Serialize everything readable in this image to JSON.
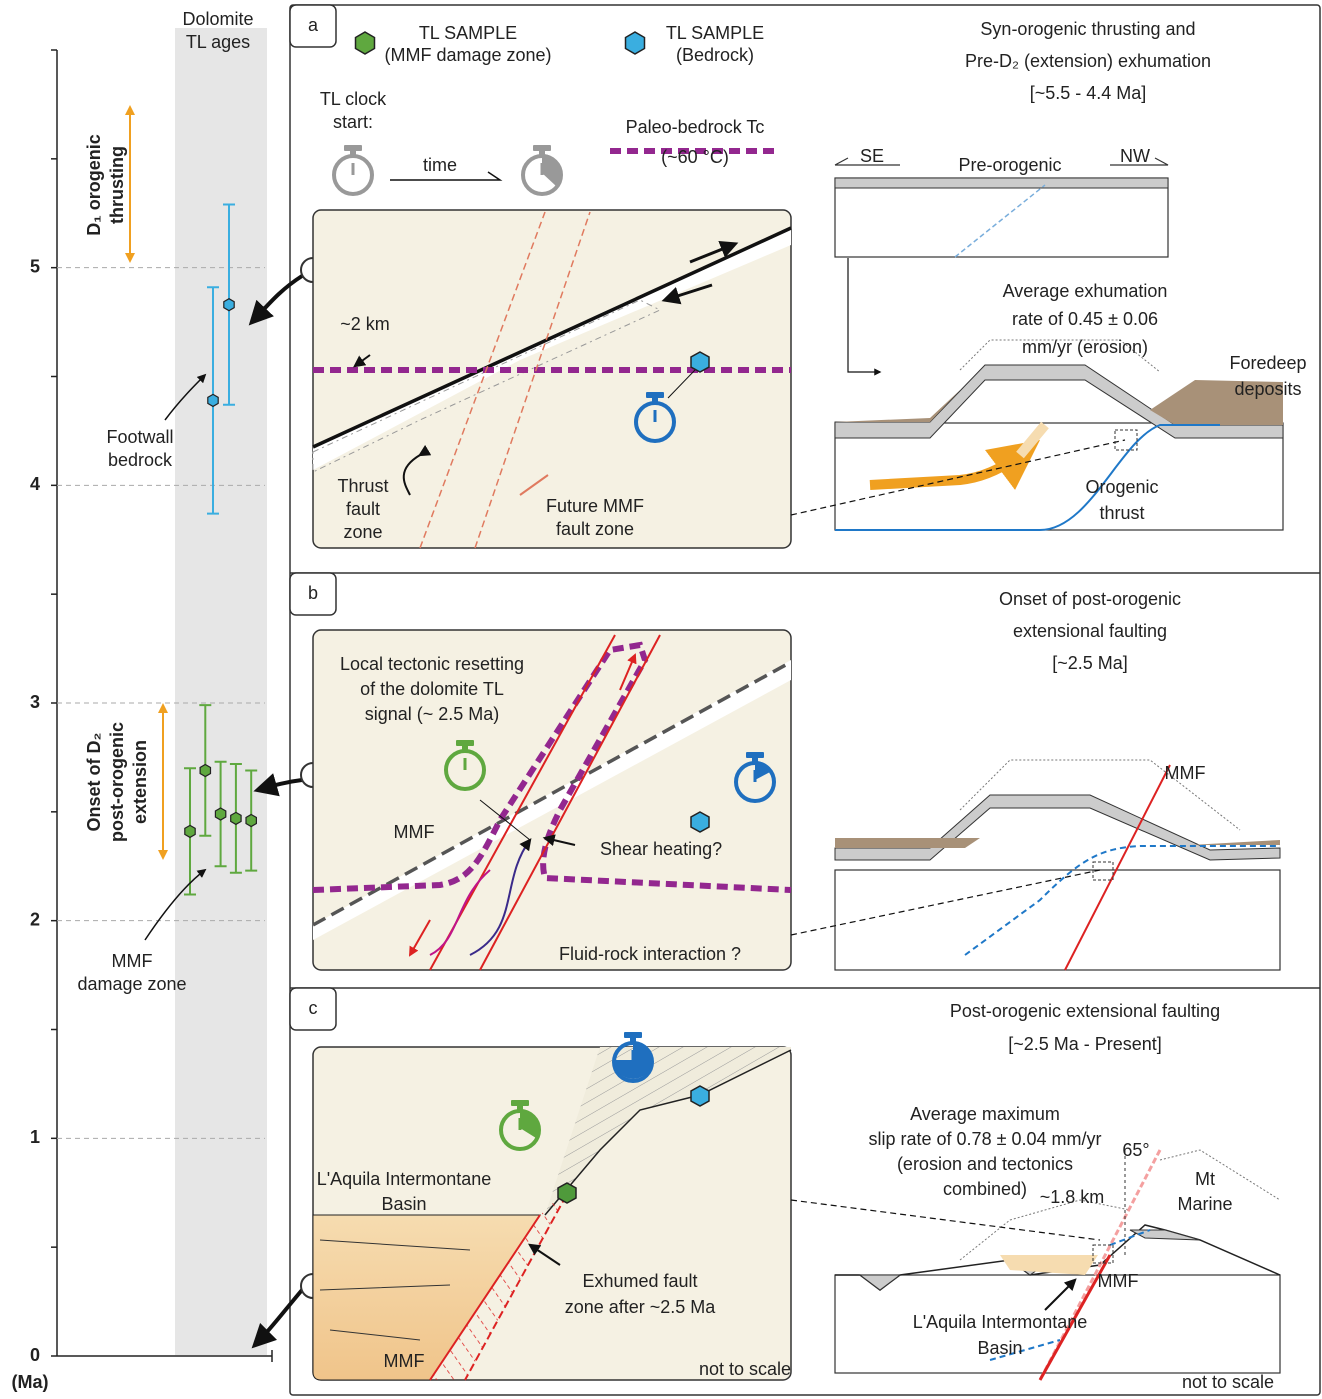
{
  "chart_data": {
    "type": "errorbar",
    "title": [
      "Dolomite",
      "TL ages"
    ],
    "ylabel": "(Ma)",
    "ylim": [
      0,
      6
    ],
    "yticks": [
      0,
      1,
      2,
      3,
      4,
      5
    ],
    "unlabeled_yticks": [
      0.5,
      1.5,
      2.5,
      3.5,
      4.5,
      5.5,
      6
    ],
    "grid": true,
    "series": [
      {
        "name": "TL SAMPLE",
        "detail": "(MMF damage zone)",
        "color": "#5fa83f",
        "values": [
          2.41,
          2.69,
          2.49,
          2.47,
          2.46
        ],
        "errors": [
          0.29,
          0.3,
          0.24,
          0.25,
          0.23
        ]
      },
      {
        "name": "TL SAMPLE",
        "detail": "(Bedrock)",
        "color": "#3aaee0",
        "values": [
          4.39,
          4.83
        ],
        "errors": [
          0.52,
          0.46
        ]
      }
    ],
    "annotations": {
      "d1": [
        "D₁ orogenic",
        "thrusting"
      ],
      "d2": [
        "Onset of D₂",
        "post-orogenic",
        "extension"
      ],
      "footwall": [
        "Footwall",
        "bedrock"
      ],
      "mmf": [
        "MMF",
        "damage zone"
      ]
    }
  },
  "panels": [
    {
      "letter": "a",
      "title": [
        "Syn-orogenic thrusting and",
        "Pre-D₂ (extension) exhumation",
        "[~5.5 - 4.4 Ma]"
      ],
      "clock": [
        "TL clock",
        "start:"
      ],
      "time": "time",
      "tc": [
        "Paleo-bedrock Tc",
        "(~60 °C)"
      ],
      "depth": "~2 km",
      "thrust_zone": [
        "Thrust",
        "fault",
        "zone"
      ],
      "future": [
        "Future MMF",
        "fault zone"
      ],
      "se": "SE",
      "pre": "Pre-orogenic",
      "nw": "NW",
      "rate": [
        "Average exhumation",
        "rate of 0.45 ± 0.06",
        "mm/yr (erosion)"
      ],
      "foredeep": [
        "Foredeep",
        "deposits"
      ],
      "thrust": [
        "Orogenic",
        "thrust"
      ]
    },
    {
      "letter": "b",
      "title": [
        "Onset of post-orogenic",
        "extensional faulting",
        "[~2.5 Ma]"
      ],
      "reset": [
        "Local tectonic resetting",
        "of the dolomite TL",
        "signal (~ 2.5 Ma)"
      ],
      "mmf": "MMF",
      "shear": "Shear heating?",
      "fluid": "Fluid-rock interaction ?",
      "mmf_right": "MMF"
    },
    {
      "letter": "c",
      "title": [
        "Post-orogenic extensional faulting",
        "[~2.5 Ma - Present]"
      ],
      "basin": [
        "L'Aquila Intermontane",
        "Basin"
      ],
      "exhumed": [
        "Exhumed fault",
        "zone after ~2.5 Ma"
      ],
      "mmf": "MMF",
      "scale": "not to scale",
      "slip": [
        "Average maximum",
        "slip rate of 0.78 ± 0.04 mm/yr",
        "(erosion and tectonics",
        "combined)"
      ],
      "angle": "65°",
      "km": "~1.8 km",
      "mt": [
        "Mt",
        "Marine"
      ],
      "mmf_right": "MMF",
      "basin_right": [
        "L'Aquila Intermontane",
        "Basin"
      ],
      "scale_right": "not to scale"
    }
  ]
}
